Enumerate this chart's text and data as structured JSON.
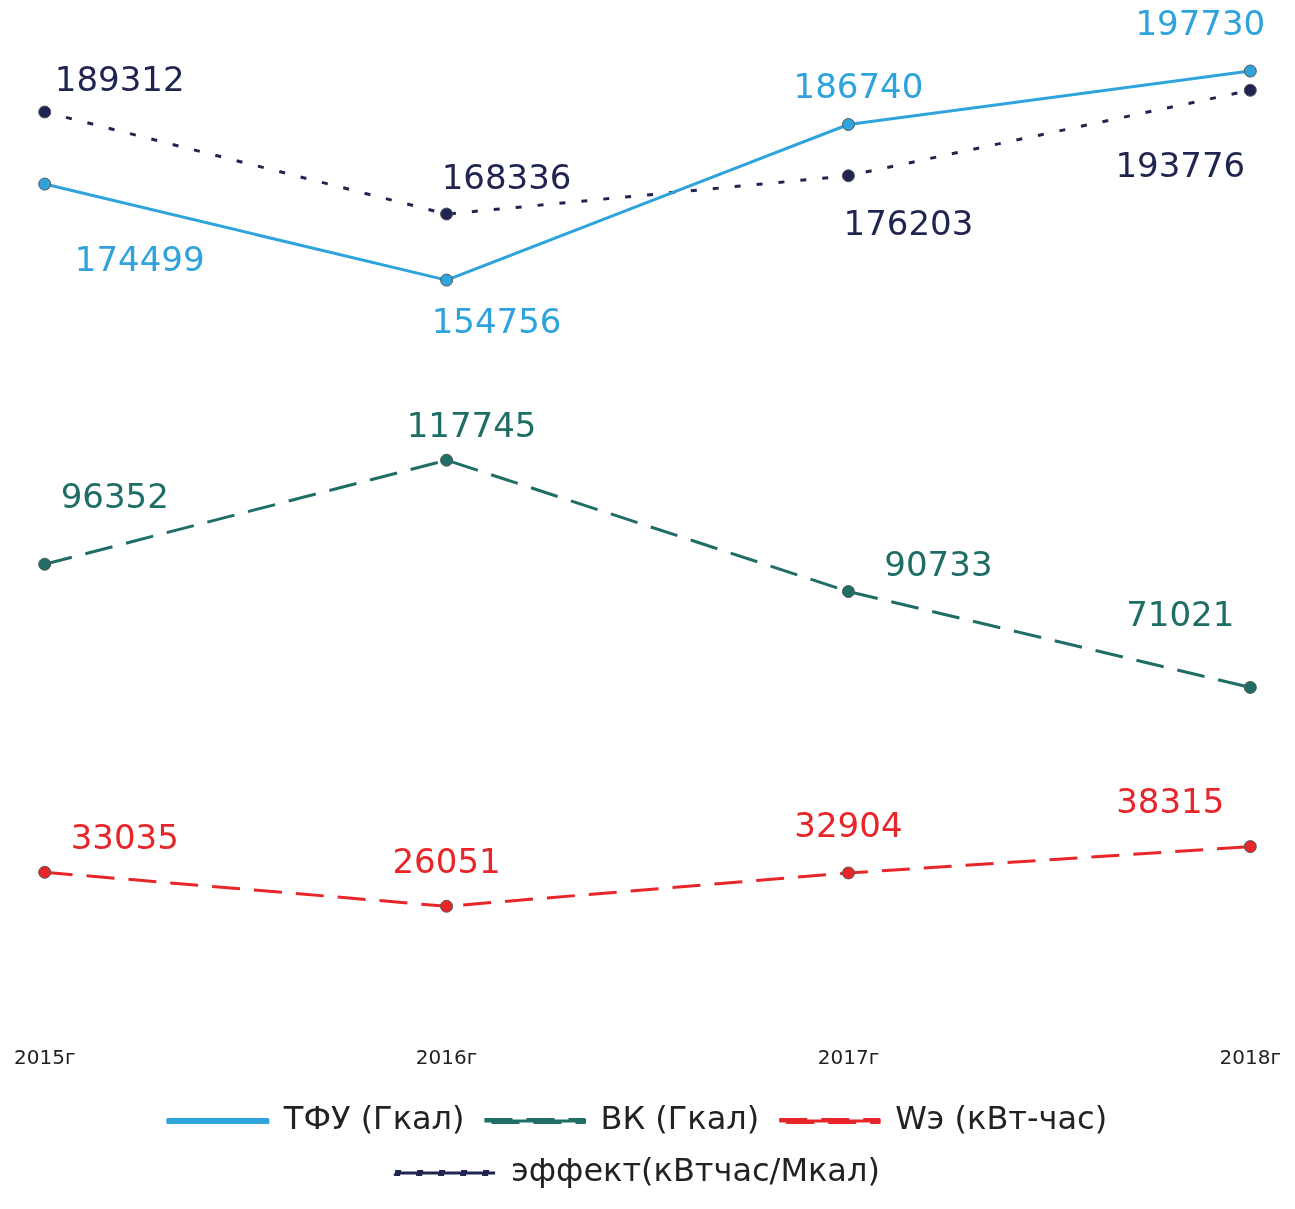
{
  "chart_data": {
    "type": "line",
    "categories": [
      "2015г",
      "2016г",
      "2017г",
      "2018г"
    ],
    "series": [
      {
        "name": "ТФУ (Гкал)",
        "color": "#2ea3dc",
        "line_style": "solid",
        "values": [
          174499,
          154756,
          186740,
          197730
        ]
      },
      {
        "name": "ВК (Гкал)",
        "color": "#1f6e66",
        "line_style": "dashed",
        "values": [
          96352,
          117745,
          90733,
          71021
        ]
      },
      {
        "name": "Wэ (кВт-час)",
        "color": "#e8262a",
        "line_style": "dashed",
        "values": [
          33035,
          26051,
          32904,
          38315
        ]
      },
      {
        "name": "эффект(кВтчас/Мкал)",
        "color": "#1f2550",
        "line_style": "dotted",
        "values": [
          189312,
          168336,
          176203,
          193776
        ]
      }
    ],
    "tick_labels": "x",
    "legend": "bottom",
    "marker": "circle",
    "data_labels": true
  }
}
